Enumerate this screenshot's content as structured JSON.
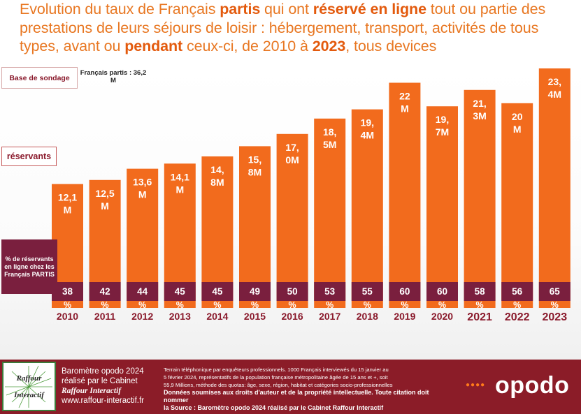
{
  "title": {
    "p1": "Evolution du taux de Français ",
    "b1": "partis",
    "p2": " qui ont ",
    "b2": "réservé en ligne",
    "p3": " tout ou partie des prestations de leurs séjours de loisir : hébergement, transport, activités de tous types, avant ou ",
    "b3": "pendant",
    "p4": " ceux-ci, de 2010 à ",
    "b4": "2023",
    "p5": ", tous devices"
  },
  "left_labels": {
    "base": "Base de sondage",
    "base_value": "Français partis : 36,2 M",
    "reservants": "réservants",
    "pct": "% de réservants en ligne chez les Français PARTIS"
  },
  "chart_data": {
    "type": "bar",
    "categories": [
      "2010",
      "2011",
      "2012",
      "2013",
      "2014",
      "2015",
      "2016",
      "2017",
      "2018",
      "2019",
      "2020",
      "2021",
      "2022",
      "2023"
    ],
    "values": [
      12.1,
      12.5,
      13.6,
      14.1,
      14.8,
      15.8,
      17.0,
      18.5,
      19.4,
      22.0,
      19.7,
      21.3,
      20.0,
      23.4
    ],
    "value_labels": [
      [
        "12,1",
        "M"
      ],
      [
        "12,5",
        "M"
      ],
      [
        "13,6",
        "M"
      ],
      [
        "14,1",
        "M"
      ],
      [
        "14,",
        "8M"
      ],
      [
        "15,",
        "8M"
      ],
      [
        "17,",
        "0M"
      ],
      [
        "18,",
        "5M"
      ],
      [
        "19,",
        "4M"
      ],
      [
        "22",
        "M"
      ],
      [
        "19,",
        "7M"
      ],
      [
        "21,",
        "3M"
      ],
      [
        "20",
        "M"
      ],
      [
        "23,",
        "4M"
      ]
    ],
    "pct_values": [
      38,
      42,
      44,
      45,
      45,
      49,
      50,
      53,
      55,
      60,
      60,
      58,
      56,
      65
    ],
    "pct_labels": [
      [
        "38",
        "%"
      ],
      [
        "42",
        "%"
      ],
      [
        "44",
        "%"
      ],
      [
        "45",
        "%"
      ],
      [
        "45",
        "%"
      ],
      [
        "49",
        "%"
      ],
      [
        "50",
        "%"
      ],
      [
        "53",
        "%"
      ],
      [
        "55",
        "%"
      ],
      [
        "60",
        "%"
      ],
      [
        "60",
        "%"
      ],
      [
        "58",
        "%"
      ],
      [
        "56",
        "%"
      ],
      [
        "65",
        "%"
      ]
    ],
    "bold_years": [
      "2021",
      "2022",
      "2023"
    ],
    "unit": "M",
    "ylim": [
      0,
      25
    ]
  },
  "colors": {
    "bar": "#f26b1d",
    "band": "#7a1f3e",
    "title": "#e87722",
    "axis_label": "#8a1a2c",
    "footer": "#8b1c28"
  },
  "footer": {
    "logo_top": "Raffour",
    "logo_bottom": "Interactif",
    "line1": "Baromètre opodo 2024",
    "line2": "réalisé par le Cabinet",
    "line3": "Raffour Interactif",
    "line4": "www.raffour-interactif.fr",
    "method1": "Terrain téléphonique par enquêteurs professionnels. 1000 Français interviewés du 15 janvier au",
    "method2": "5 février 2024, représentatifs de la population française métropolitaine âgée de 15 ans et +, soit",
    "method3": "55,9 Millions, méthode des quotas: âge, sexe, région, habitat et catégories socio-professionnelles",
    "method4": "Données soumises aux droits d'auteur et de la propriété intellectuelle. Toute citation doit nommer",
    "method5": "la Source : Baromètre opodo 2024 réalisé par le Cabinet Raffour Interactif",
    "brand": "opodo"
  }
}
